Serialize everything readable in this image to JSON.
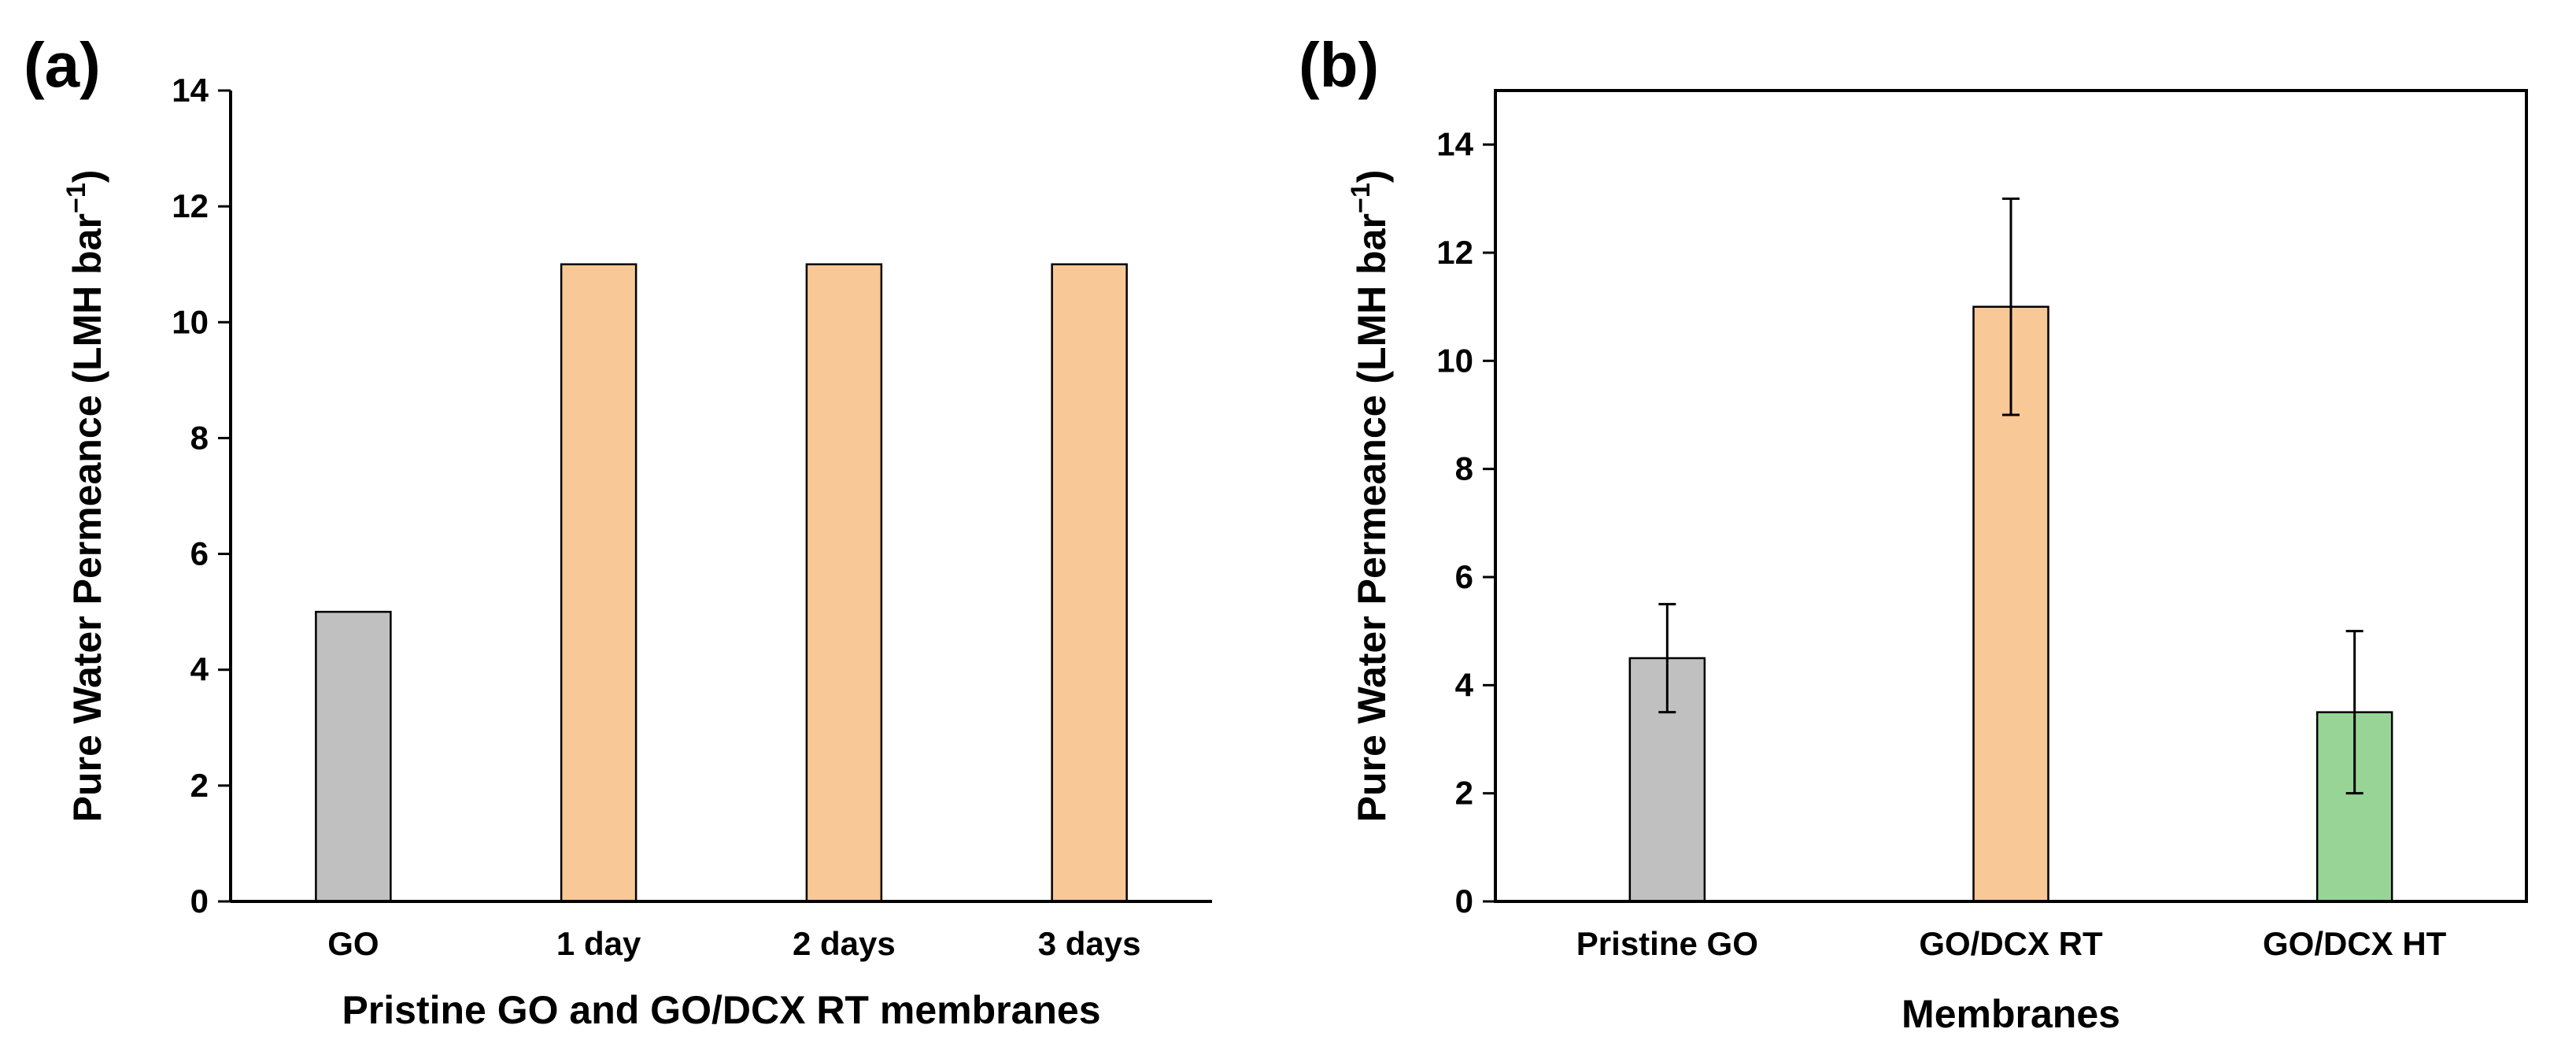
{
  "chart_data": [
    {
      "type": "bar",
      "panel_label": "(a)",
      "categories": [
        "GO",
        "1 day",
        "2 days",
        "3 days"
      ],
      "values": [
        5,
        11,
        11,
        11
      ],
      "colors": [
        "#c0c0c0",
        "#f8c896",
        "#f8c896",
        "#f8c896"
      ],
      "errors": null,
      "xlabel": "Pristine GO and GO/DCX RT membranes",
      "ylabel": "Pure Water Permeance (LMH bar",
      "ylabel_superscript": "−1",
      "ylabel_close": ")",
      "ylim": [
        0,
        14
      ],
      "yticks": [
        0,
        2,
        4,
        6,
        8,
        10,
        12,
        14
      ],
      "ytick_labels": [
        "0",
        "2",
        "4",
        "6",
        "8",
        "10",
        "12",
        "14"
      ],
      "frame": "left-bottom"
    },
    {
      "type": "bar",
      "panel_label": "(b)",
      "categories": [
        "Pristine GO",
        "GO/DCX RT",
        "GO/DCX HT"
      ],
      "values": [
        4.5,
        11,
        3.5
      ],
      "errors": [
        1,
        2,
        1.5
      ],
      "colors": [
        "#c0c0c0",
        "#f8c896",
        "#98d496"
      ],
      "xlabel": "Membranes",
      "ylabel": "Pure Water Permeance (LMH bar",
      "ylabel_superscript": "−1",
      "ylabel_close": ")",
      "ylim": [
        0,
        15
      ],
      "yticks": [
        0,
        2,
        4,
        6,
        8,
        10,
        12,
        14
      ],
      "ytick_labels": [
        "0",
        "2",
        "4",
        "6",
        "8",
        "10",
        "12",
        "14"
      ],
      "frame": "box"
    }
  ]
}
